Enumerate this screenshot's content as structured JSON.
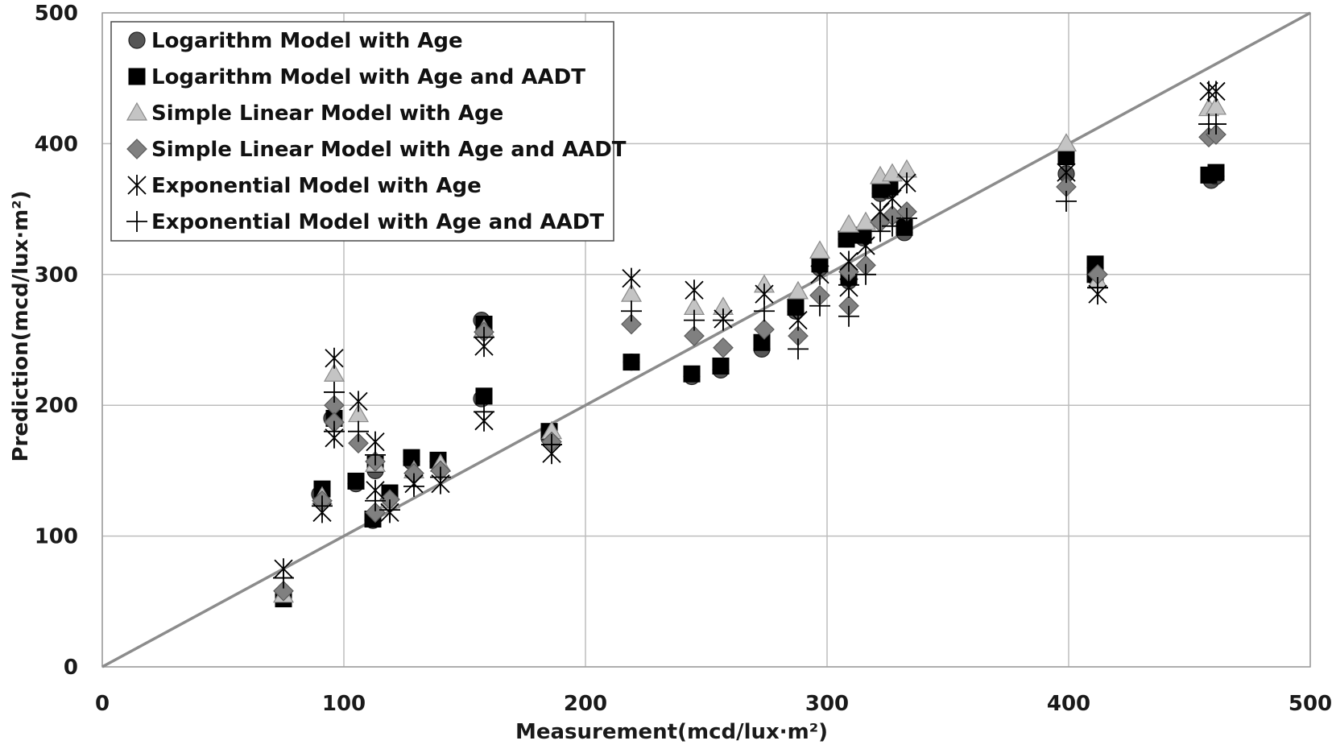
{
  "chart_data": {
    "type": "scatter",
    "xlabel": "Measurement(mcd/lux·m²)",
    "ylabel": "Prediction(mcd/lux·m²)",
    "xlim": [
      0,
      500
    ],
    "ylim": [
      0,
      500
    ],
    "xticks": [
      "0",
      "100",
      "200",
      "300",
      "400",
      "500"
    ],
    "yticks": [
      "0",
      "100",
      "200",
      "300",
      "400",
      "500"
    ],
    "grid": true,
    "legend_position": "top-left",
    "reference_line": {
      "from": [
        0,
        0
      ],
      "to": [
        500,
        500
      ],
      "color": "#8c8c8c"
    },
    "series": [
      {
        "name": "Logarithm Model with Age",
        "marker": "circle",
        "color": "#555555",
        "points": [
          [
            75,
            55
          ],
          [
            90,
            132
          ],
          [
            95,
            190
          ],
          [
            105,
            140
          ],
          [
            112,
            112
          ],
          [
            113,
            150
          ],
          [
            119,
            130
          ],
          [
            128,
            157
          ],
          [
            139,
            157
          ],
          [
            157,
            265
          ],
          [
            157,
            205
          ],
          [
            185,
            175
          ],
          [
            219,
            233
          ],
          [
            244,
            222
          ],
          [
            256,
            227
          ],
          [
            273,
            243
          ],
          [
            287,
            272
          ],
          [
            297,
            305
          ],
          [
            308,
            327
          ],
          [
            309,
            295
          ],
          [
            315,
            328
          ],
          [
            322,
            362
          ],
          [
            325,
            364
          ],
          [
            332,
            332
          ],
          [
            399,
            377
          ],
          [
            411,
            305
          ],
          [
            411,
            298
          ],
          [
            459,
            372
          ],
          [
            461,
            375
          ]
        ]
      },
      {
        "name": "Logarithm Model with Age and AADT",
        "marker": "square",
        "color": "#000000",
        "points": [
          [
            75,
            52
          ],
          [
            91,
            136
          ],
          [
            96,
            190
          ],
          [
            105,
            142
          ],
          [
            112,
            113
          ],
          [
            113,
            155
          ],
          [
            119,
            133
          ],
          [
            128,
            160
          ],
          [
            139,
            158
          ],
          [
            158,
            262
          ],
          [
            158,
            207
          ],
          [
            185,
            180
          ],
          [
            219,
            233
          ],
          [
            244,
            224
          ],
          [
            256,
            230
          ],
          [
            273,
            248
          ],
          [
            287,
            275
          ],
          [
            297,
            308
          ],
          [
            308,
            327
          ],
          [
            309,
            298
          ],
          [
            315,
            330
          ],
          [
            322,
            365
          ],
          [
            326,
            367
          ],
          [
            332,
            336
          ],
          [
            399,
            390
          ],
          [
            411,
            308
          ],
          [
            411,
            300
          ],
          [
            458,
            376
          ],
          [
            461,
            378
          ]
        ]
      },
      {
        "name": "Simple Linear Model with Age",
        "marker": "triangle",
        "color": "#c4c4c4",
        "points": [
          [
            75,
            55
          ],
          [
            91,
            130
          ],
          [
            96,
            224
          ],
          [
            106,
            193
          ],
          [
            113,
            155
          ],
          [
            119,
            127
          ],
          [
            129,
            150
          ],
          [
            140,
            155
          ],
          [
            158,
            258
          ],
          [
            186,
            180
          ],
          [
            219,
            285
          ],
          [
            245,
            275
          ],
          [
            257,
            275
          ],
          [
            274,
            292
          ],
          [
            288,
            287
          ],
          [
            297,
            318
          ],
          [
            309,
            338
          ],
          [
            316,
            340
          ],
          [
            322,
            375
          ],
          [
            327,
            377
          ],
          [
            333,
            380
          ],
          [
            399,
            400
          ],
          [
            412,
            295
          ],
          [
            458,
            427
          ],
          [
            461,
            428
          ]
        ]
      },
      {
        "name": "Simple Linear Model with Age and AADT",
        "marker": "diamond",
        "color": "#808080",
        "points": [
          [
            75,
            58
          ],
          [
            91,
            127
          ],
          [
            96,
            200
          ],
          [
            96,
            187
          ],
          [
            106,
            171
          ],
          [
            113,
            157
          ],
          [
            113,
            118
          ],
          [
            119,
            128
          ],
          [
            129,
            148
          ],
          [
            140,
            150
          ],
          [
            158,
            256
          ],
          [
            186,
            172
          ],
          [
            219,
            262
          ],
          [
            245,
            253
          ],
          [
            257,
            244
          ],
          [
            274,
            258
          ],
          [
            288,
            253
          ],
          [
            297,
            284
          ],
          [
            309,
            276
          ],
          [
            309,
            302
          ],
          [
            316,
            307
          ],
          [
            322,
            340
          ],
          [
            327,
            345
          ],
          [
            333,
            348
          ],
          [
            399,
            367
          ],
          [
            412,
            300
          ],
          [
            458,
            405
          ],
          [
            461,
            407
          ]
        ]
      },
      {
        "name": "Exponential Model with Age",
        "marker": "star",
        "color": "#000000",
        "points": [
          [
            75,
            75
          ],
          [
            91,
            118
          ],
          [
            96,
            236
          ],
          [
            96,
            175
          ],
          [
            106,
            203
          ],
          [
            113,
            172
          ],
          [
            113,
            135
          ],
          [
            119,
            118
          ],
          [
            129,
            140
          ],
          [
            140,
            140
          ],
          [
            158,
            245
          ],
          [
            158,
            188
          ],
          [
            186,
            163
          ],
          [
            219,
            297
          ],
          [
            245,
            288
          ],
          [
            257,
            266
          ],
          [
            274,
            285
          ],
          [
            288,
            265
          ],
          [
            297,
            300
          ],
          [
            309,
            310
          ],
          [
            309,
            290
          ],
          [
            316,
            322
          ],
          [
            322,
            348
          ],
          [
            327,
            358
          ],
          [
            333,
            370
          ],
          [
            399,
            378
          ],
          [
            412,
            285
          ],
          [
            458,
            440
          ],
          [
            461,
            440
          ]
        ]
      },
      {
        "name": "Exponential Model with Age and AADT",
        "marker": "plus",
        "color": "#000000",
        "points": [
          [
            75,
            68
          ],
          [
            91,
            123
          ],
          [
            96,
            210
          ],
          [
            96,
            180
          ],
          [
            106,
            180
          ],
          [
            113,
            162
          ],
          [
            113,
            127
          ],
          [
            119,
            120
          ],
          [
            129,
            138
          ],
          [
            140,
            145
          ],
          [
            158,
            252
          ],
          [
            158,
            195
          ],
          [
            186,
            170
          ],
          [
            219,
            272
          ],
          [
            245,
            265
          ],
          [
            257,
            265
          ],
          [
            274,
            272
          ],
          [
            288,
            243
          ],
          [
            297,
            276
          ],
          [
            309,
            268
          ],
          [
            309,
            292
          ],
          [
            316,
            300
          ],
          [
            322,
            333
          ],
          [
            327,
            337
          ],
          [
            333,
            343
          ],
          [
            399,
            356
          ],
          [
            412,
            290
          ],
          [
            458,
            415
          ],
          [
            461,
            415
          ]
        ]
      }
    ]
  }
}
